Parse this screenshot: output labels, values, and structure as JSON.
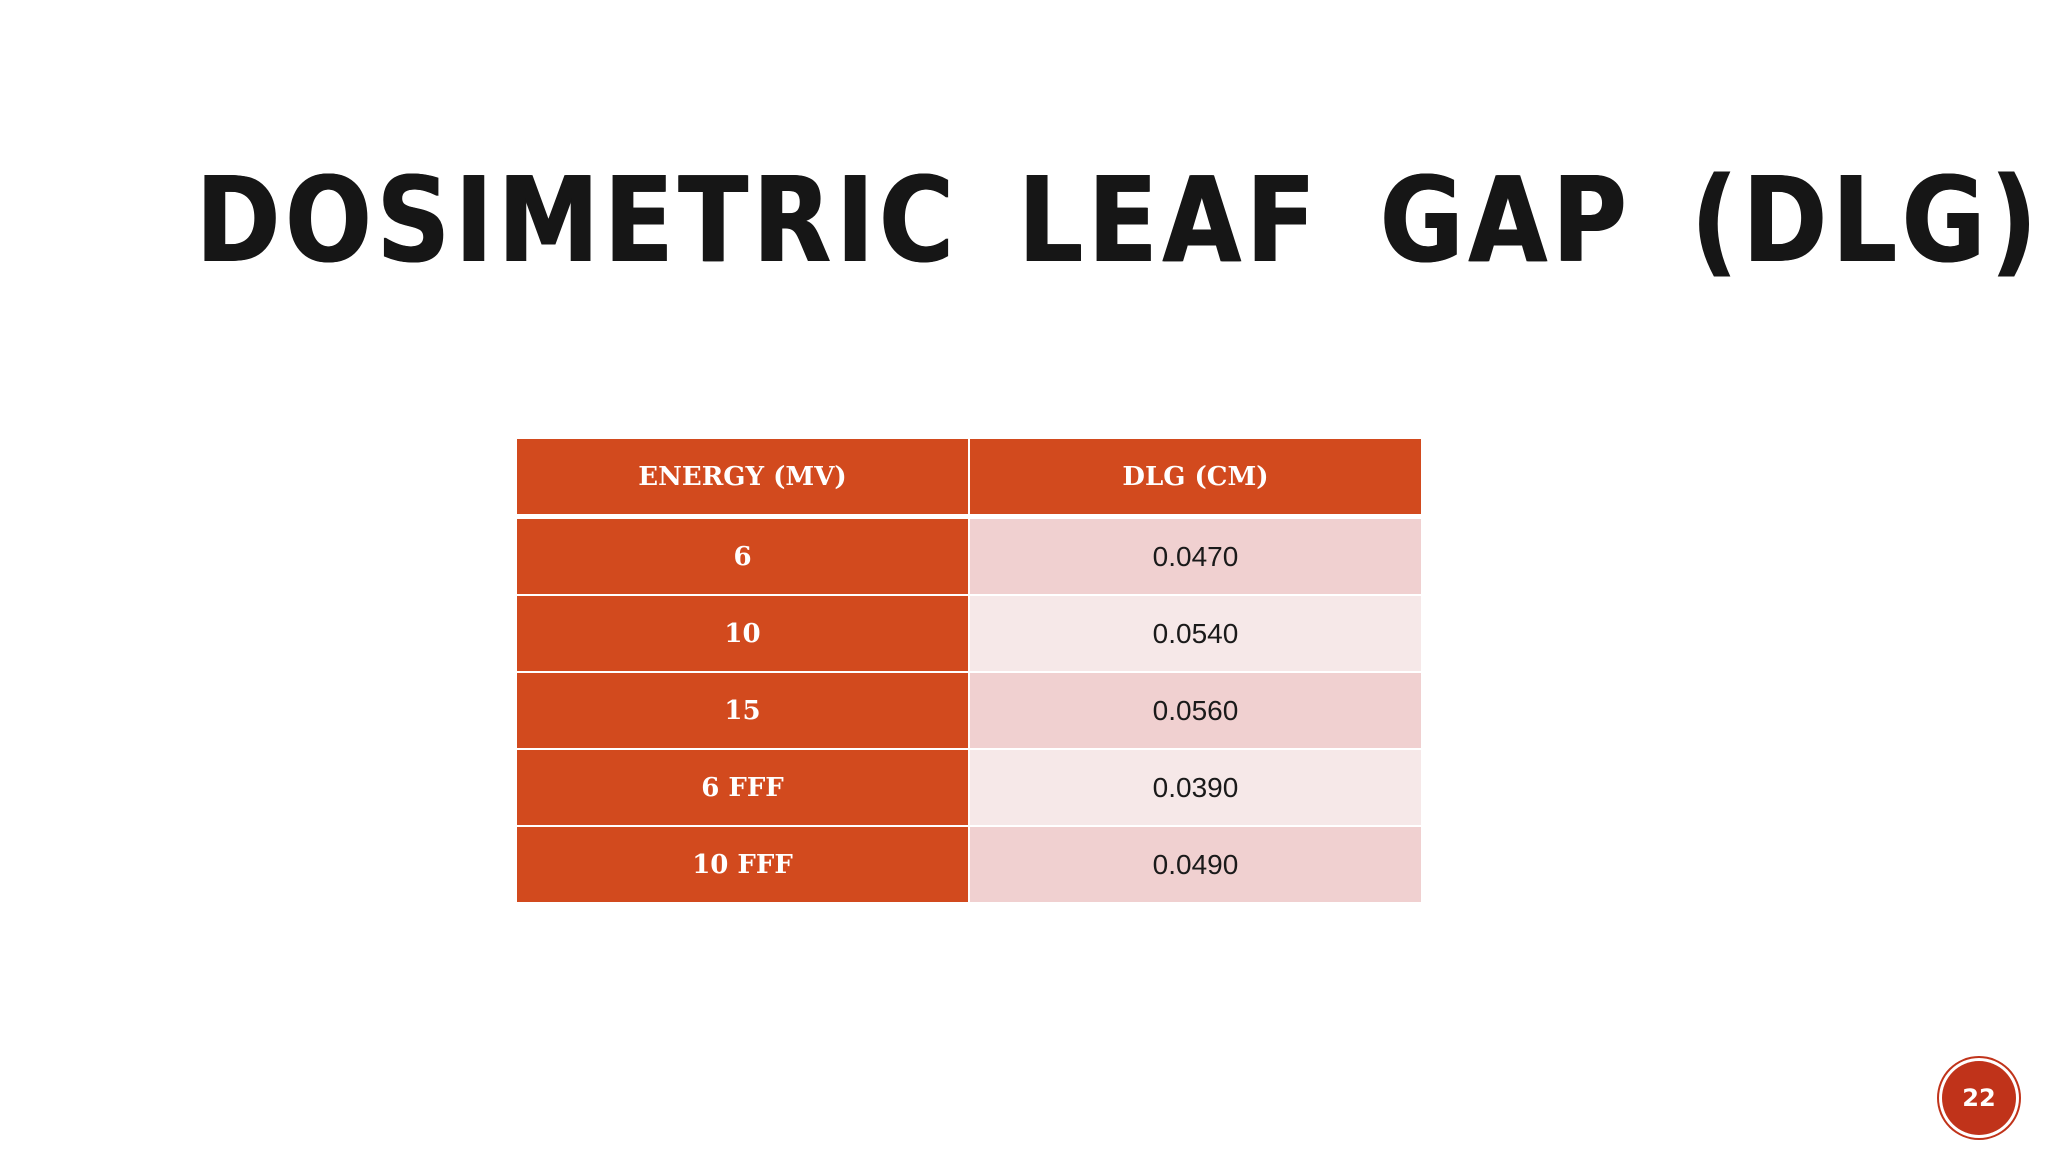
{
  "slide": {
    "title": "DOSIMETRIC LEAF GAP (DLG)",
    "page_number": "22",
    "accent_color": "#d24a1e"
  },
  "table": {
    "headers": [
      "ENERGY (MV)",
      "DLG (CM)"
    ],
    "rows": [
      {
        "energy": "6",
        "dlg": "0.0470"
      },
      {
        "energy": "10",
        "dlg": "0.0540"
      },
      {
        "energy": "15",
        "dlg": "0.0560"
      },
      {
        "energy": "6 FFF",
        "dlg": "0.0390"
      },
      {
        "energy": "10 FFF",
        "dlg": "0.0490"
      }
    ]
  }
}
